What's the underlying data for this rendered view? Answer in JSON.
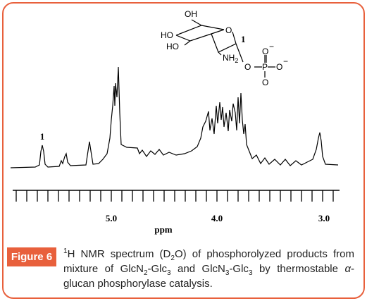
{
  "figure": {
    "peak_label": "1",
    "axis_label": "ppm",
    "tick_labels": [
      "5.0",
      "4.0",
      "3.0"
    ],
    "structure": {
      "oh_top": "OH",
      "ho_left": "HO",
      "ho_low": "HO",
      "ring_o": "O",
      "nh": "NH",
      "nh_sub": "2",
      "anomeric": "1",
      "o_link": "O",
      "p": "P",
      "o_top": "O",
      "o_right": "O",
      "o_bottom": "O",
      "minus_top": "−",
      "minus_right": "−"
    }
  },
  "caption": {
    "label": "Figure 6",
    "parts": [
      "1",
      "H NMR spectrum (D",
      "2",
      "O) of phosphorolyzed products from mixture of GlcN",
      "2",
      "-Glc",
      "3",
      " and GlcN",
      "3",
      "-Glc",
      "3",
      " by thermostable ",
      "α",
      "-glucan phosphorylase catalysis."
    ]
  }
}
